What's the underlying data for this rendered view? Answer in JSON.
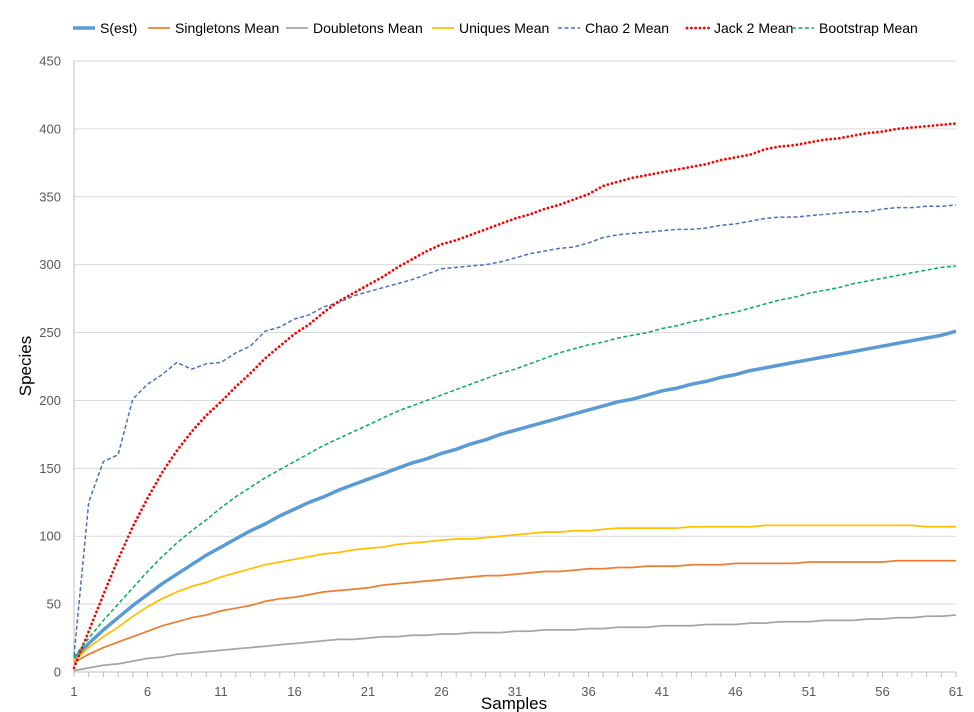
{
  "chart_data": {
    "type": "line",
    "title": "",
    "xlabel": "Samples",
    "ylabel": "Species",
    "xlim": [
      1,
      61
    ],
    "ylim": [
      0,
      450
    ],
    "x_ticks": [
      1,
      6,
      11,
      16,
      21,
      26,
      31,
      36,
      41,
      46,
      51,
      56,
      61
    ],
    "y_ticks": [
      0,
      50,
      100,
      150,
      200,
      250,
      300,
      350,
      400,
      450
    ],
    "grid": "horizontal",
    "legend_position": "top",
    "series": [
      {
        "name": "S(est)",
        "color": "#5b9bd5",
        "style": "solid-thick",
        "x": [
          1,
          2,
          3,
          4,
          5,
          6,
          7,
          8,
          9,
          10,
          11,
          12,
          13,
          14,
          15,
          16,
          17,
          18,
          19,
          20,
          21,
          22,
          23,
          24,
          25,
          26,
          27,
          28,
          29,
          30,
          31,
          32,
          33,
          34,
          35,
          36,
          37,
          38,
          39,
          40,
          41,
          42,
          43,
          44,
          45,
          46,
          47,
          48,
          49,
          50,
          51,
          52,
          53,
          54,
          55,
          56,
          57,
          58,
          59,
          60,
          61
        ],
        "y": [
          10,
          21,
          31,
          40,
          49,
          57,
          65,
          72,
          79,
          86,
          92,
          98,
          104,
          109,
          115,
          120,
          125,
          129,
          134,
          138,
          142,
          146,
          150,
          154,
          157,
          161,
          164,
          168,
          171,
          175,
          178,
          181,
          184,
          187,
          190,
          193,
          196,
          199,
          201,
          204,
          207,
          209,
          212,
          214,
          217,
          219,
          222,
          224,
          226,
          228,
          230,
          232,
          234,
          236,
          238,
          240,
          242,
          244,
          246,
          248,
          251
        ]
      },
      {
        "name": "Singletons Mean",
        "color": "#ed7d31",
        "style": "solid",
        "x": [
          1,
          2,
          3,
          4,
          5,
          6,
          7,
          8,
          9,
          10,
          11,
          12,
          13,
          14,
          15,
          16,
          17,
          18,
          19,
          20,
          21,
          22,
          23,
          24,
          25,
          26,
          27,
          28,
          29,
          30,
          31,
          32,
          33,
          34,
          35,
          36,
          37,
          38,
          39,
          40,
          41,
          42,
          43,
          44,
          45,
          46,
          47,
          48,
          49,
          50,
          51,
          52,
          53,
          54,
          55,
          56,
          57,
          58,
          59,
          60,
          61
        ],
        "y": [
          7,
          13,
          18,
          22,
          26,
          30,
          34,
          37,
          40,
          42,
          45,
          47,
          49,
          52,
          54,
          55,
          57,
          59,
          60,
          61,
          62,
          64,
          65,
          66,
          67,
          68,
          69,
          70,
          71,
          71,
          72,
          73,
          74,
          74,
          75,
          76,
          76,
          77,
          77,
          78,
          78,
          78,
          79,
          79,
          79,
          80,
          80,
          80,
          80,
          80,
          81,
          81,
          81,
          81,
          81,
          81,
          82,
          82,
          82,
          82,
          82
        ]
      },
      {
        "name": "Doubletons Mean",
        "color": "#a5a5a5",
        "style": "solid",
        "x": [
          1,
          2,
          3,
          4,
          5,
          6,
          7,
          8,
          9,
          10,
          11,
          12,
          13,
          14,
          15,
          16,
          17,
          18,
          19,
          20,
          21,
          22,
          23,
          24,
          25,
          26,
          27,
          28,
          29,
          30,
          31,
          32,
          33,
          34,
          35,
          36,
          37,
          38,
          39,
          40,
          41,
          42,
          43,
          44,
          45,
          46,
          47,
          48,
          49,
          50,
          51,
          52,
          53,
          54,
          55,
          56,
          57,
          58,
          59,
          60,
          61
        ],
        "y": [
          1,
          3,
          5,
          6,
          8,
          10,
          11,
          13,
          14,
          15,
          16,
          17,
          18,
          19,
          20,
          21,
          22,
          23,
          24,
          24,
          25,
          26,
          26,
          27,
          27,
          28,
          28,
          29,
          29,
          29,
          30,
          30,
          31,
          31,
          31,
          32,
          32,
          33,
          33,
          33,
          34,
          34,
          34,
          35,
          35,
          35,
          36,
          36,
          37,
          37,
          37,
          38,
          38,
          38,
          39,
          39,
          40,
          40,
          41,
          41,
          42
        ]
      },
      {
        "name": "Uniques Mean",
        "color": "#ffc000",
        "style": "solid",
        "x": [
          1,
          2,
          3,
          4,
          5,
          6,
          7,
          8,
          9,
          10,
          11,
          12,
          13,
          14,
          15,
          16,
          17,
          18,
          19,
          20,
          21,
          22,
          23,
          24,
          25,
          26,
          27,
          28,
          29,
          30,
          31,
          32,
          33,
          34,
          35,
          36,
          37,
          38,
          39,
          40,
          41,
          42,
          43,
          44,
          45,
          46,
          47,
          48,
          49,
          50,
          51,
          52,
          53,
          54,
          55,
          56,
          57,
          58,
          59,
          60,
          61
        ],
        "y": [
          8,
          18,
          26,
          33,
          41,
          48,
          54,
          59,
          63,
          66,
          70,
          73,
          76,
          79,
          81,
          83,
          85,
          87,
          88,
          90,
          91,
          92,
          94,
          95,
          96,
          97,
          98,
          98,
          99,
          100,
          101,
          102,
          103,
          103,
          104,
          104,
          105,
          106,
          106,
          106,
          106,
          106,
          107,
          107,
          107,
          107,
          107,
          108,
          108,
          108,
          108,
          108,
          108,
          108,
          108,
          108,
          108,
          108,
          107,
          107,
          107
        ]
      },
      {
        "name": "Chao 2 Mean",
        "color": "#4472c4",
        "style": "dashed",
        "x": [
          1,
          2,
          3,
          4,
          5,
          6,
          7,
          8,
          9,
          10,
          11,
          12,
          13,
          14,
          15,
          16,
          17,
          18,
          19,
          20,
          21,
          22,
          23,
          24,
          25,
          26,
          27,
          28,
          29,
          30,
          31,
          32,
          33,
          34,
          35,
          36,
          37,
          38,
          39,
          40,
          41,
          42,
          43,
          44,
          45,
          46,
          47,
          48,
          49,
          50,
          51,
          52,
          53,
          54,
          55,
          56,
          57,
          58,
          59,
          60,
          61
        ],
        "y": [
          12,
          125,
          155,
          160,
          201,
          212,
          219,
          228,
          223,
          227,
          228,
          235,
          240,
          251,
          254,
          260,
          263,
          269,
          272,
          277,
          280,
          283,
          286,
          289,
          293,
          297,
          298,
          299,
          300,
          302,
          305,
          308,
          310,
          312,
          313,
          316,
          320,
          322,
          323,
          324,
          325,
          326,
          326,
          327,
          329,
          330,
          332,
          334,
          335,
          335,
          336,
          337,
          338,
          339,
          339,
          341,
          342,
          342,
          343,
          343,
          344
        ]
      },
      {
        "name": "Jack 2 Mean",
        "color": "#ff0000",
        "style": "dotted",
        "x": [
          1,
          2,
          3,
          4,
          5,
          6,
          7,
          8,
          9,
          10,
          11,
          12,
          13,
          14,
          15,
          16,
          17,
          18,
          19,
          20,
          21,
          22,
          23,
          24,
          25,
          26,
          27,
          28,
          29,
          30,
          31,
          32,
          33,
          34,
          35,
          36,
          37,
          38,
          39,
          40,
          41,
          42,
          43,
          44,
          45,
          46,
          47,
          48,
          49,
          50,
          51,
          52,
          53,
          54,
          55,
          56,
          57,
          58,
          59,
          60,
          61
        ],
        "y": [
          3,
          30,
          57,
          83,
          107,
          128,
          147,
          163,
          177,
          189,
          199,
          210,
          220,
          231,
          240,
          249,
          256,
          265,
          273,
          279,
          285,
          291,
          298,
          304,
          310,
          315,
          318,
          322,
          326,
          330,
          334,
          337,
          341,
          344,
          348,
          352,
          358,
          361,
          364,
          366,
          368,
          370,
          372,
          374,
          377,
          379,
          381,
          385,
          387,
          388,
          390,
          392,
          393,
          395,
          397,
          398,
          400,
          401,
          402,
          403,
          404
        ]
      },
      {
        "name": "Bootstrap Mean",
        "color": "#00b050",
        "style": "dashed",
        "x": [
          1,
          2,
          3,
          4,
          5,
          6,
          7,
          8,
          9,
          10,
          11,
          12,
          13,
          14,
          15,
          16,
          17,
          18,
          19,
          20,
          21,
          22,
          23,
          24,
          25,
          26,
          27,
          28,
          29,
          30,
          31,
          32,
          33,
          34,
          35,
          36,
          37,
          38,
          39,
          40,
          41,
          42,
          43,
          44,
          45,
          46,
          47,
          48,
          49,
          50,
          51,
          52,
          53,
          54,
          55,
          56,
          57,
          58,
          59,
          60,
          61
        ],
        "y": [
          11,
          25,
          38,
          50,
          62,
          74,
          85,
          95,
          104,
          112,
          121,
          129,
          136,
          143,
          149,
          155,
          161,
          167,
          172,
          177,
          182,
          187,
          192,
          196,
          200,
          204,
          208,
          212,
          216,
          220,
          223,
          227,
          231,
          235,
          238,
          241,
          243,
          246,
          248,
          250,
          253,
          255,
          258,
          260,
          263,
          265,
          268,
          271,
          274,
          276,
          279,
          281,
          283,
          286,
          288,
          290,
          292,
          294,
          296,
          298,
          299
        ]
      }
    ]
  }
}
